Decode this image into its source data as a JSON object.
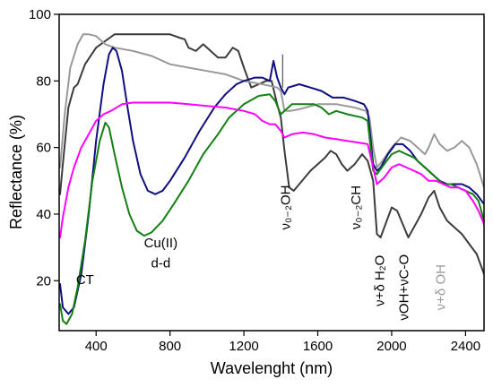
{
  "chart_data": {
    "type": "line",
    "title": "",
    "xlabel": "Wavelenght (nm)",
    "ylabel": "Reflectance (%)",
    "xlim": [
      200,
      2500
    ],
    "ylim": [
      5,
      100
    ],
    "xticks": [
      400,
      800,
      1200,
      1600,
      2000,
      2400
    ],
    "yticks": [
      20,
      40,
      60,
      80,
      100
    ],
    "grid": false,
    "legend": "none",
    "series": [
      {
        "color": "#3c3c3c",
        "points": [
          [
            205,
            46
          ],
          [
            220,
            55
          ],
          [
            250,
            72
          ],
          [
            280,
            78
          ],
          [
            300,
            79
          ],
          [
            340,
            85
          ],
          [
            400,
            90
          ],
          [
            500,
            94
          ],
          [
            600,
            94
          ],
          [
            700,
            94
          ],
          [
            800,
            94
          ],
          [
            850,
            93
          ],
          [
            880,
            92.5
          ],
          [
            900,
            90
          ],
          [
            940,
            89
          ],
          [
            980,
            91
          ],
          [
            1020,
            89
          ],
          [
            1060,
            87
          ],
          [
            1100,
            87
          ],
          [
            1140,
            90
          ],
          [
            1170,
            89
          ],
          [
            1200,
            84
          ],
          [
            1240,
            78
          ],
          [
            1280,
            79
          ],
          [
            1320,
            80
          ],
          [
            1350,
            80
          ],
          [
            1380,
            73
          ],
          [
            1400,
            69
          ],
          [
            1420,
            59
          ],
          [
            1445,
            48
          ],
          [
            1470,
            47
          ],
          [
            1500,
            49
          ],
          [
            1560,
            53
          ],
          [
            1600,
            55
          ],
          [
            1640,
            57
          ],
          [
            1670,
            59
          ],
          [
            1700,
            58
          ],
          [
            1730,
            55
          ],
          [
            1760,
            53
          ],
          [
            1800,
            55
          ],
          [
            1840,
            58
          ],
          [
            1870,
            56
          ],
          [
            1900,
            50
          ],
          [
            1920,
            34
          ],
          [
            1940,
            33
          ],
          [
            1960,
            36
          ],
          [
            2000,
            42
          ],
          [
            2030,
            41
          ],
          [
            2060,
            37
          ],
          [
            2090,
            33
          ],
          [
            2120,
            36
          ],
          [
            2160,
            40
          ],
          [
            2200,
            45
          ],
          [
            2230,
            47
          ],
          [
            2260,
            42
          ],
          [
            2300,
            38
          ],
          [
            2340,
            36
          ],
          [
            2380,
            34
          ],
          [
            2420,
            31
          ],
          [
            2460,
            28
          ],
          [
            2500,
            22
          ]
        ]
      },
      {
        "color": "#999999",
        "points": [
          [
            205,
            54
          ],
          [
            230,
            70
          ],
          [
            260,
            84
          ],
          [
            300,
            91
          ],
          [
            330,
            94
          ],
          [
            360,
            94
          ],
          [
            400,
            93.5
          ],
          [
            450,
            91
          ],
          [
            500,
            90
          ],
          [
            600,
            89
          ],
          [
            700,
            87.5
          ],
          [
            800,
            85
          ],
          [
            900,
            84
          ],
          [
            1000,
            83
          ],
          [
            1100,
            82
          ],
          [
            1200,
            80
          ],
          [
            1300,
            79
          ],
          [
            1380,
            78
          ],
          [
            1400,
            77
          ],
          [
            1420,
            71
          ],
          [
            1450,
            71
          ],
          [
            1500,
            71.5
          ],
          [
            1600,
            73
          ],
          [
            1700,
            73
          ],
          [
            1800,
            72
          ],
          [
            1860,
            71
          ],
          [
            1880,
            69
          ],
          [
            1900,
            60
          ],
          [
            1920,
            54
          ],
          [
            1950,
            56
          ],
          [
            2000,
            60
          ],
          [
            2050,
            63
          ],
          [
            2100,
            62
          ],
          [
            2140,
            60
          ],
          [
            2180,
            58
          ],
          [
            2200,
            60
          ],
          [
            2230,
            64
          ],
          [
            2260,
            61
          ],
          [
            2300,
            59
          ],
          [
            2340,
            60
          ],
          [
            2380,
            62
          ],
          [
            2420,
            60
          ],
          [
            2460,
            55
          ],
          [
            2500,
            48
          ]
        ]
      },
      {
        "color": "#0f0f80",
        "points": [
          [
            205,
            19
          ],
          [
            220,
            12
          ],
          [
            250,
            10
          ],
          [
            280,
            12
          ],
          [
            320,
            22
          ],
          [
            360,
            40
          ],
          [
            400,
            62
          ],
          [
            440,
            79
          ],
          [
            470,
            88
          ],
          [
            490,
            90
          ],
          [
            510,
            89
          ],
          [
            540,
            83
          ],
          [
            570,
            72
          ],
          [
            600,
            62
          ],
          [
            640,
            52
          ],
          [
            680,
            47
          ],
          [
            720,
            46
          ],
          [
            760,
            47
          ],
          [
            800,
            50
          ],
          [
            880,
            57
          ],
          [
            960,
            65
          ],
          [
            1040,
            72
          ],
          [
            1100,
            76
          ],
          [
            1160,
            79
          ],
          [
            1200,
            80
          ],
          [
            1260,
            81
          ],
          [
            1300,
            81
          ],
          [
            1340,
            80
          ],
          [
            1360,
            86
          ],
          [
            1380,
            81
          ],
          [
            1400,
            78
          ],
          [
            1420,
            76
          ],
          [
            1440,
            78
          ],
          [
            1500,
            79
          ],
          [
            1560,
            78
          ],
          [
            1620,
            77
          ],
          [
            1680,
            75
          ],
          [
            1740,
            75
          ],
          [
            1800,
            74
          ],
          [
            1850,
            73
          ],
          [
            1870,
            71
          ],
          [
            1900,
            55
          ],
          [
            1920,
            53
          ],
          [
            1940,
            54
          ],
          [
            1980,
            58
          ],
          [
            2020,
            61
          ],
          [
            2060,
            61
          ],
          [
            2100,
            59
          ],
          [
            2140,
            56
          ],
          [
            2180,
            54
          ],
          [
            2220,
            52
          ],
          [
            2260,
            50
          ],
          [
            2300,
            49
          ],
          [
            2340,
            49
          ],
          [
            2380,
            49
          ],
          [
            2420,
            48
          ],
          [
            2460,
            46
          ],
          [
            2500,
            43
          ]
        ]
      },
      {
        "color": "#138013",
        "points": [
          [
            205,
            13
          ],
          [
            220,
            8
          ],
          [
            240,
            7
          ],
          [
            270,
            10
          ],
          [
            300,
            18
          ],
          [
            340,
            32
          ],
          [
            380,
            50
          ],
          [
            420,
            62
          ],
          [
            450,
            67.5
          ],
          [
            470,
            66
          ],
          [
            500,
            58
          ],
          [
            540,
            48
          ],
          [
            580,
            40
          ],
          [
            620,
            35
          ],
          [
            660,
            33.5
          ],
          [
            700,
            34.5
          ],
          [
            760,
            38
          ],
          [
            820,
            43
          ],
          [
            900,
            50
          ],
          [
            980,
            58
          ],
          [
            1060,
            64
          ],
          [
            1120,
            69
          ],
          [
            1200,
            73
          ],
          [
            1280,
            75.5
          ],
          [
            1340,
            76
          ],
          [
            1370,
            74
          ],
          [
            1400,
            70
          ],
          [
            1420,
            71
          ],
          [
            1460,
            73
          ],
          [
            1520,
            73
          ],
          [
            1580,
            73
          ],
          [
            1620,
            72
          ],
          [
            1640,
            71
          ],
          [
            1660,
            70
          ],
          [
            1700,
            71
          ],
          [
            1760,
            70
          ],
          [
            1840,
            69
          ],
          [
            1870,
            68
          ],
          [
            1900,
            53
          ],
          [
            1920,
            52
          ],
          [
            1960,
            55
          ],
          [
            2000,
            58
          ],
          [
            2040,
            59
          ],
          [
            2080,
            58
          ],
          [
            2120,
            57
          ],
          [
            2160,
            55
          ],
          [
            2200,
            53
          ],
          [
            2240,
            51
          ],
          [
            2280,
            49
          ],
          [
            2320,
            49
          ],
          [
            2360,
            48
          ],
          [
            2400,
            47
          ],
          [
            2440,
            46
          ],
          [
            2470,
            44
          ],
          [
            2500,
            38
          ]
        ]
      },
      {
        "color": "#ff00ff",
        "points": [
          [
            205,
            33
          ],
          [
            220,
            39
          ],
          [
            250,
            48
          ],
          [
            280,
            54
          ],
          [
            320,
            60
          ],
          [
            360,
            64
          ],
          [
            400,
            68
          ],
          [
            440,
            70
          ],
          [
            480,
            71
          ],
          [
            540,
            73
          ],
          [
            600,
            73.5
          ],
          [
            700,
            73.5
          ],
          [
            800,
            73.5
          ],
          [
            900,
            73
          ],
          [
            1000,
            72.5
          ],
          [
            1100,
            72
          ],
          [
            1200,
            71
          ],
          [
            1260,
            70
          ],
          [
            1300,
            68
          ],
          [
            1340,
            67
          ],
          [
            1370,
            67
          ],
          [
            1400,
            65
          ],
          [
            1420,
            63
          ],
          [
            1460,
            64
          ],
          [
            1520,
            64.5
          ],
          [
            1580,
            64
          ],
          [
            1640,
            63
          ],
          [
            1700,
            62.5
          ],
          [
            1760,
            62
          ],
          [
            1820,
            61.5
          ],
          [
            1870,
            61
          ],
          [
            1900,
            54
          ],
          [
            1920,
            49
          ],
          [
            1960,
            51
          ],
          [
            2000,
            54
          ],
          [
            2040,
            55
          ],
          [
            2080,
            54
          ],
          [
            2120,
            53
          ],
          [
            2160,
            52
          ],
          [
            2200,
            50
          ],
          [
            2240,
            50
          ],
          [
            2280,
            49
          ],
          [
            2320,
            48
          ],
          [
            2360,
            48
          ],
          [
            2400,
            47
          ],
          [
            2440,
            44
          ],
          [
            2470,
            41
          ],
          [
            2500,
            37
          ]
        ]
      }
    ],
    "annotations": [
      {
        "text": "CT",
        "x": 340,
        "y": 19,
        "color": "#000000",
        "rotate": false
      },
      {
        "text": "Cu(II)",
        "x": 750,
        "y": 30,
        "color": "#000000",
        "rotate": false
      },
      {
        "text": "d-d",
        "x": 750,
        "y": 24,
        "color": "#000000",
        "rotate": false
      },
      {
        "text": "ν₀₋₂OH",
        "x": 1450,
        "y": 42,
        "color": "#000000",
        "rotate": true
      },
      {
        "text": "ν₀₋₂CH",
        "x": 1830,
        "y": 42,
        "color": "#000000",
        "rotate": true
      },
      {
        "text": "ν+δ H₂O",
        "x": 1960,
        "y": 20,
        "color": "#000000",
        "rotate": true
      },
      {
        "text": "νOH+νC-O",
        "x": 2090,
        "y": 18,
        "color": "#000000",
        "rotate": true
      },
      {
        "text": "ν+δ OH",
        "x": 2290,
        "y": 18,
        "color": "#999999",
        "rotate": true
      }
    ],
    "marker_line": {
      "x": 1410,
      "y1": 78,
      "y2": 88
    }
  }
}
